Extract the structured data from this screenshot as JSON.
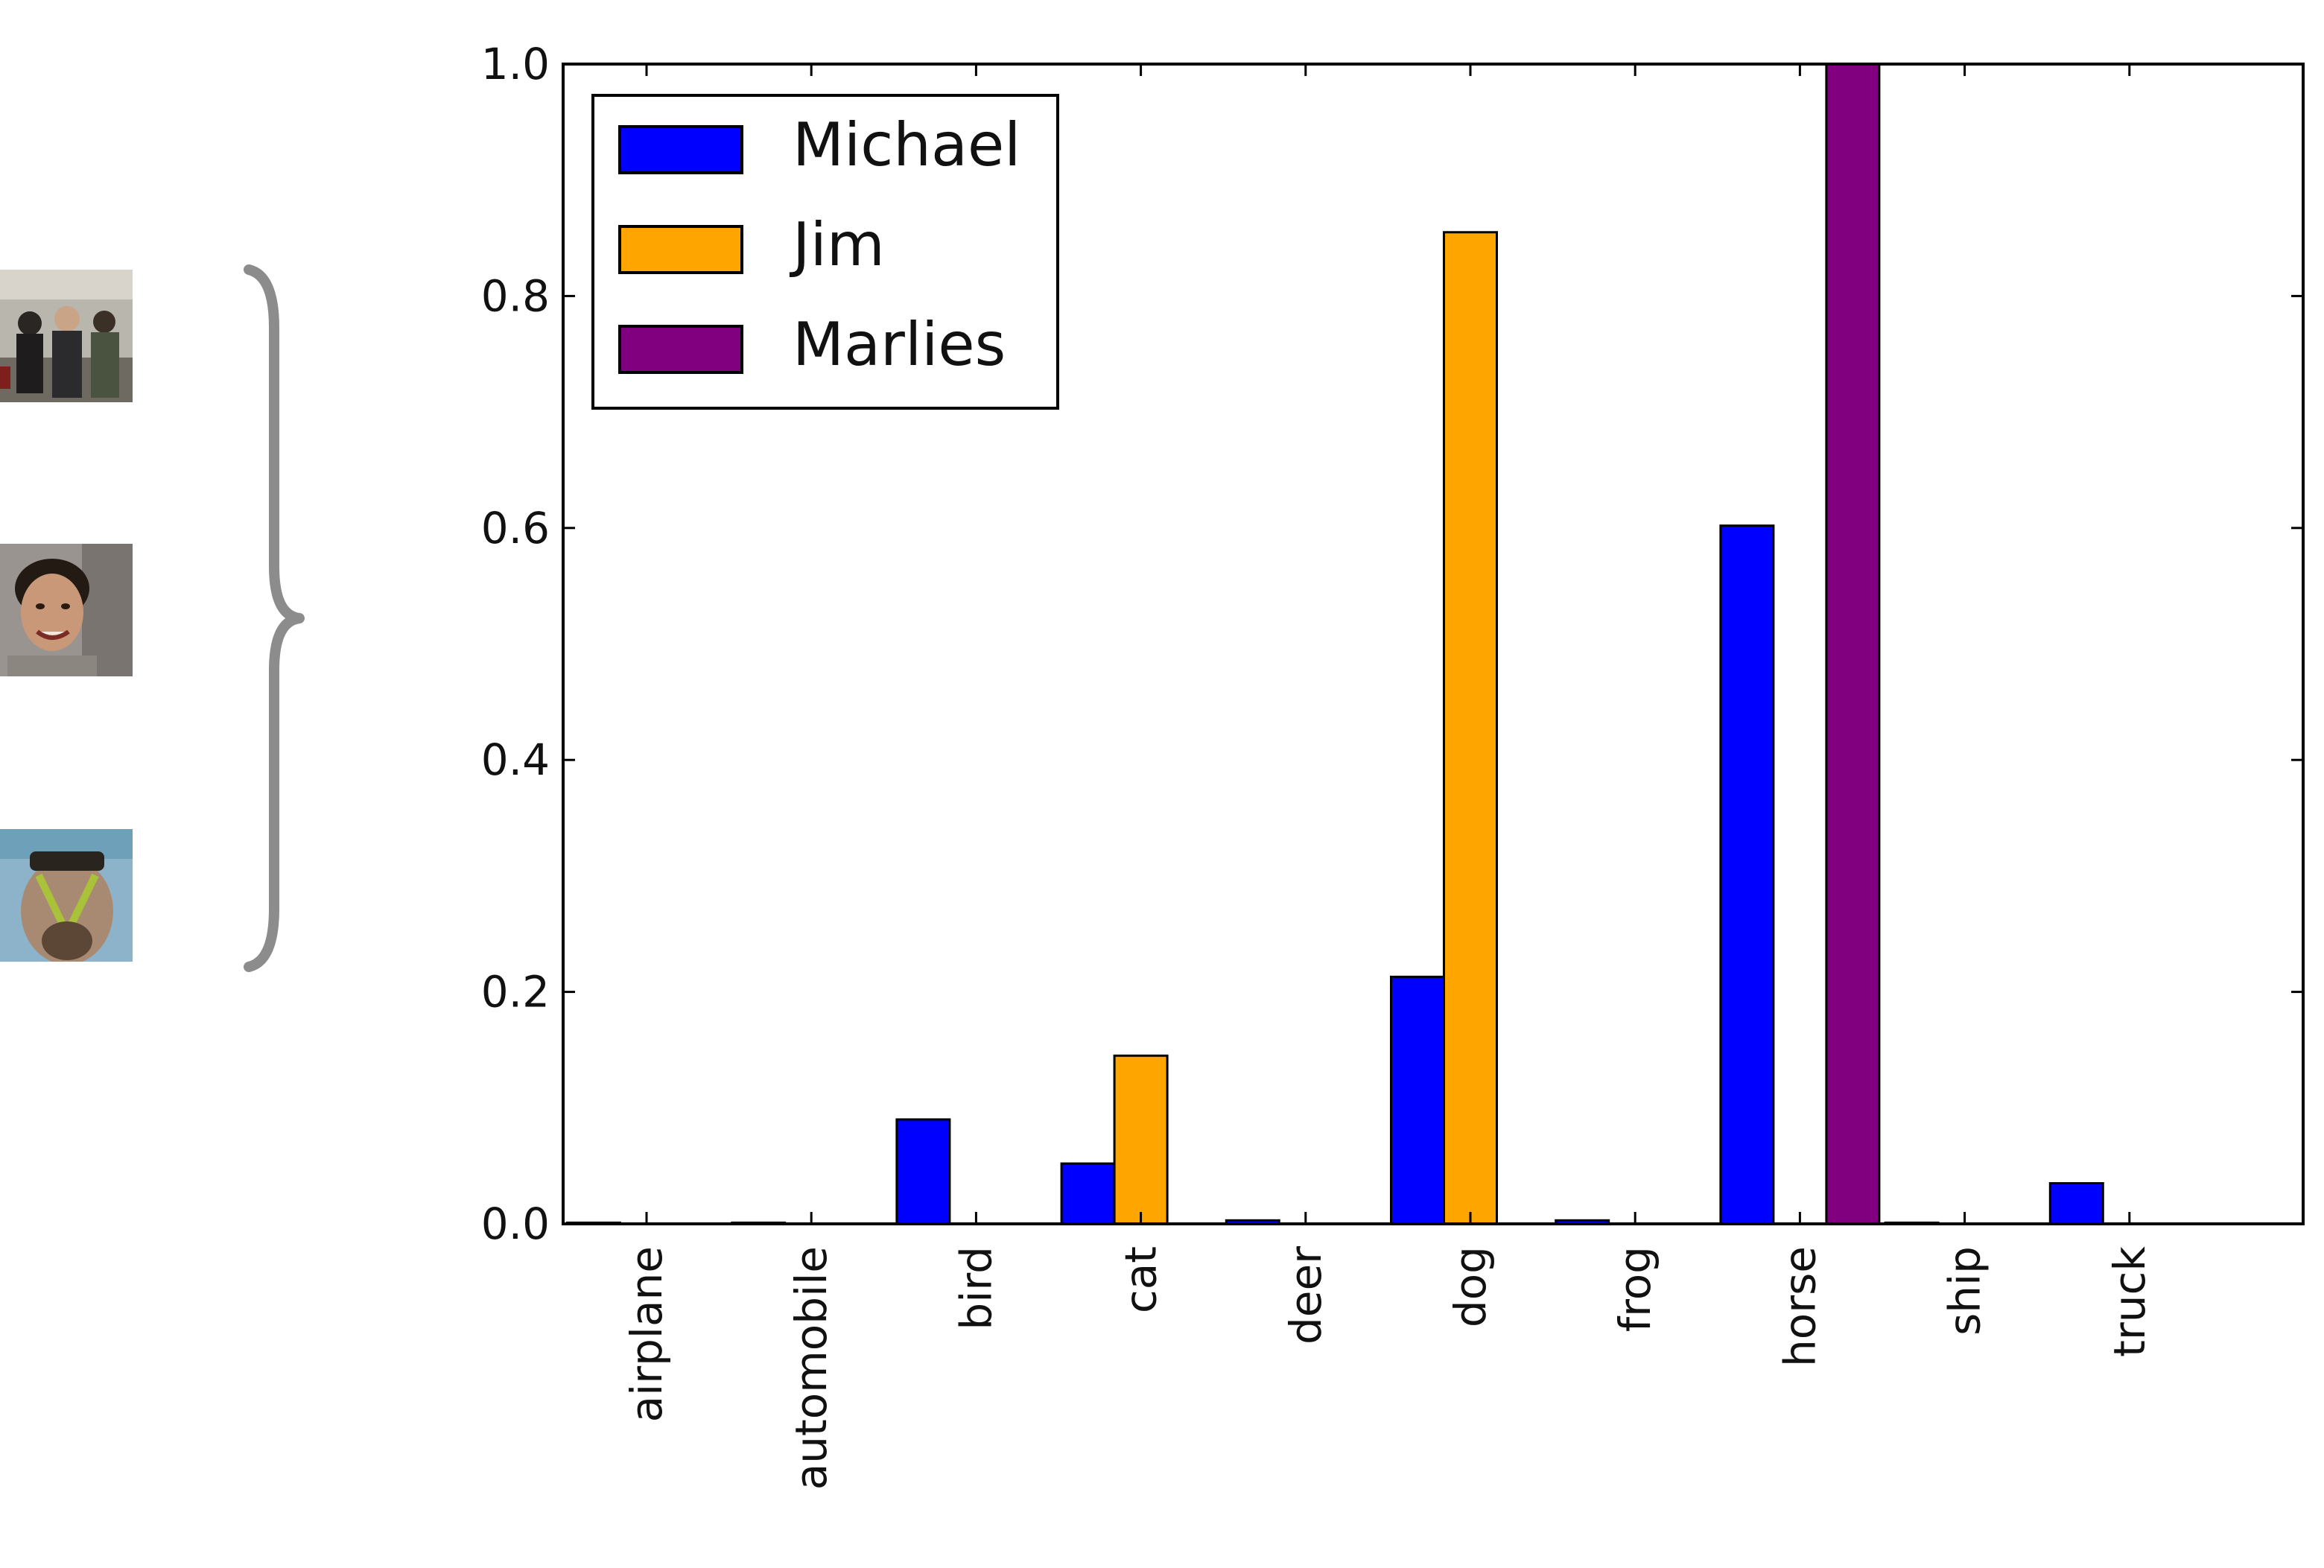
{
  "chart_data": {
    "type": "bar",
    "title": "",
    "xlabel": "",
    "ylabel": "",
    "categories": [
      "airplane",
      "automobile",
      "bird",
      "cat",
      "deer",
      "dog",
      "frog",
      "horse",
      "ship",
      "truck"
    ],
    "series": [
      {
        "name": "Michael",
        "color": "#0000ff",
        "values": [
          0.001,
          0.001,
          0.09,
          0.052,
          0.003,
          0.213,
          0.003,
          0.602,
          0.001,
          0.035
        ]
      },
      {
        "name": "Jim",
        "color": "#ffa500",
        "values": [
          0.0,
          0.0,
          0.0,
          0.145,
          0.0,
          0.855,
          0.0,
          0.0,
          0.0,
          0.0
        ]
      },
      {
        "name": "Marlies",
        "color": "#800080",
        "values": [
          0.0,
          0.0,
          0.0,
          0.0,
          0.0,
          0.0,
          0.0,
          1.0,
          0.0,
          0.0
        ]
      }
    ],
    "ylim": [
      0,
      1.0
    ],
    "yticks": [
      "0.0",
      "0.2",
      "0.4",
      "0.6",
      "0.8",
      "1.0"
    ],
    "grid": false,
    "legend_position": "top-left"
  },
  "images": [
    {
      "icon": "group-photo-icon",
      "person": "Michael"
    },
    {
      "icon": "portrait-photo-icon",
      "person": "Jim"
    },
    {
      "icon": "face-paint-photo-icon",
      "person": "Marlies"
    }
  ],
  "brace_color": "#8c8c8c"
}
